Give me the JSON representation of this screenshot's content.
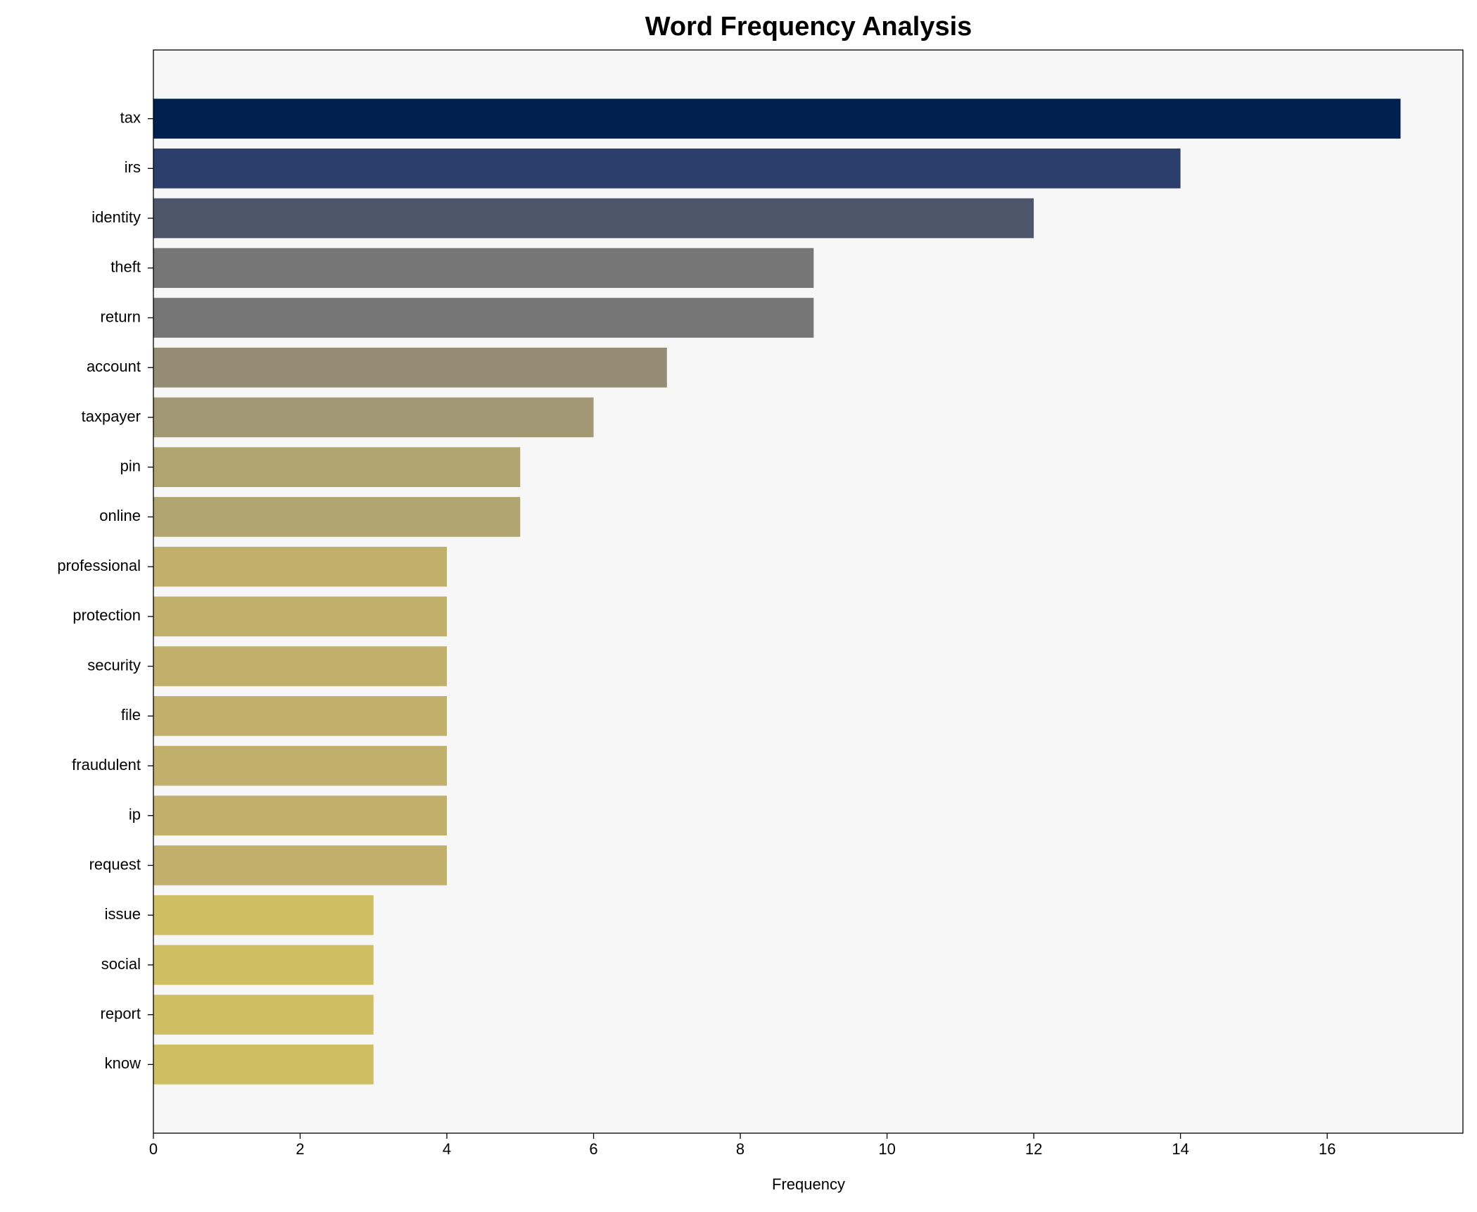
{
  "chart_data": {
    "type": "bar",
    "orientation": "horizontal",
    "title": "Word Frequency Analysis",
    "x_label": "Frequency",
    "categories": [
      "tax",
      "irs",
      "identity",
      "theft",
      "return",
      "account",
      "taxpayer",
      "pin",
      "online",
      "professional",
      "protection",
      "security",
      "file",
      "fraudulent",
      "ip",
      "request",
      "issue",
      "social",
      "report",
      "know"
    ],
    "values": [
      17,
      14,
      12,
      9,
      9,
      7,
      6,
      5,
      5,
      4,
      4,
      4,
      4,
      4,
      4,
      4,
      3,
      3,
      3,
      3
    ],
    "colors": [
      "#002051",
      "#2c3e6b",
      "#4d566b",
      "#767676",
      "#767676",
      "#958c76",
      "#a29974",
      "#b0a570",
      "#b0a570",
      "#c1b06c",
      "#c1b06c",
      "#c1b06c",
      "#c1b06c",
      "#c1b06c",
      "#c1b06c",
      "#c1b06c",
      "#cfbe62",
      "#cfbe62",
      "#cfbe62",
      "#cfbe62"
    ],
    "xlim": [
      0,
      17.85
    ],
    "xticks": [
      0,
      2,
      4,
      6,
      8,
      10,
      12,
      14,
      16
    ],
    "background": "#f7f7f7"
  }
}
